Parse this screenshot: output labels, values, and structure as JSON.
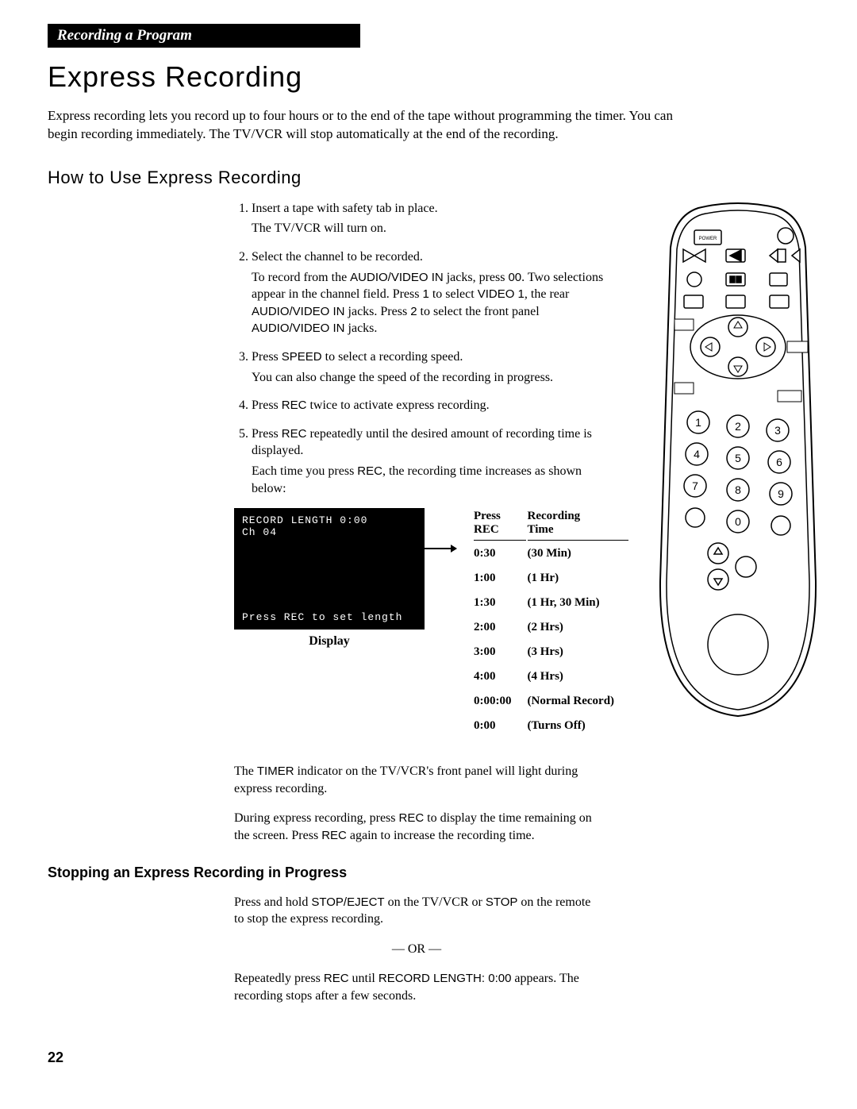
{
  "section_header": "Recording a Program",
  "main_title": "Express Recording",
  "intro": "Express recording lets you record up to four hours or to the end of the tape without programming the timer. You can begin recording immediately. The TV/VCR will stop automatically at the end of the recording.",
  "how_to_title": "How to Use Express Recording",
  "steps": [
    {
      "main": "Insert a tape with safety tab in place.",
      "sub": "The TV/VCR will turn on."
    },
    {
      "main": "Select the channel to be recorded.",
      "sub_html": "To record from the AUDIO/VIDEO IN jacks, press 00. Two selections appear in the channel field. Press 1 to select VIDEO 1, the rear AUDIO/VIDEO IN jacks. Press 2 to select the front panel AUDIO/VIDEO IN jacks."
    },
    {
      "main_html": "Press SPEED to select a recording speed.",
      "sub": "You can also change the speed of the recording in progress."
    },
    {
      "main_html": "Press REC twice to activate express recording."
    },
    {
      "main_html": "Press REC repeatedly until the desired amount of recording time is displayed.",
      "sub_html": "Each time you press REC, the recording time increases as shown below:"
    }
  ],
  "display": {
    "line1": "RECORD LENGTH  0:00",
    "line2": "        Ch  04",
    "bottom": "Press REC to set length",
    "label": "Display"
  },
  "table": {
    "header1": "Press",
    "header1b": "REC",
    "header2": "Recording",
    "header2b": "Time",
    "rows": [
      [
        "0:30",
        "(30 Min)"
      ],
      [
        "1:00",
        "(1 Hr)"
      ],
      [
        "1:30",
        "(1 Hr, 30 Min)"
      ],
      [
        "2:00",
        "(2 Hrs)"
      ],
      [
        "3:00",
        "(3 Hrs)"
      ],
      [
        "4:00",
        "(4 Hrs)"
      ],
      [
        "0:00:00",
        "(Normal Record)"
      ],
      [
        "0:00",
        "(Turns Off)"
      ]
    ]
  },
  "timer_note_1": "The TIMER indicator on the TV/VCR's front panel will light during express recording.",
  "timer_note_2a": "During express recording, press ",
  "timer_note_2b": " to display the time remaining on the screen.  Press ",
  "timer_note_2c": " again to increase the recording time.",
  "rec_word": "REC",
  "stopping_title": "Stopping an Express Recording in Progress",
  "stopping_p1a": "Press and hold ",
  "stopping_p1b": " on the TV/VCR or ",
  "stopping_p1c": " on the remote to stop the express recording.",
  "stop_eject": "STOP/EJECT",
  "stop_word": "STOP",
  "or_text": "— OR —",
  "stopping_p2a": "Repeatedly press ",
  "stopping_p2b": " until ",
  "stopping_p2c": " appears.  The recording stops after a few seconds.",
  "record_length_zero": "RECORD LENGTH: 0:00",
  "page_number": "22",
  "remote_labels": {
    "power": "POWER",
    "num1": "1",
    "num2": "2",
    "num3": "3",
    "num4": "4",
    "num5": "5",
    "num6": "6",
    "num7": "7",
    "num8": "8",
    "num9": "9",
    "num0": "0"
  },
  "style": {
    "text_color": "#000000",
    "bg_color": "#ffffff",
    "header_bg": "#000000",
    "header_fg": "#ffffff",
    "display_bg": "#000000",
    "display_fg": "#ffffff"
  }
}
